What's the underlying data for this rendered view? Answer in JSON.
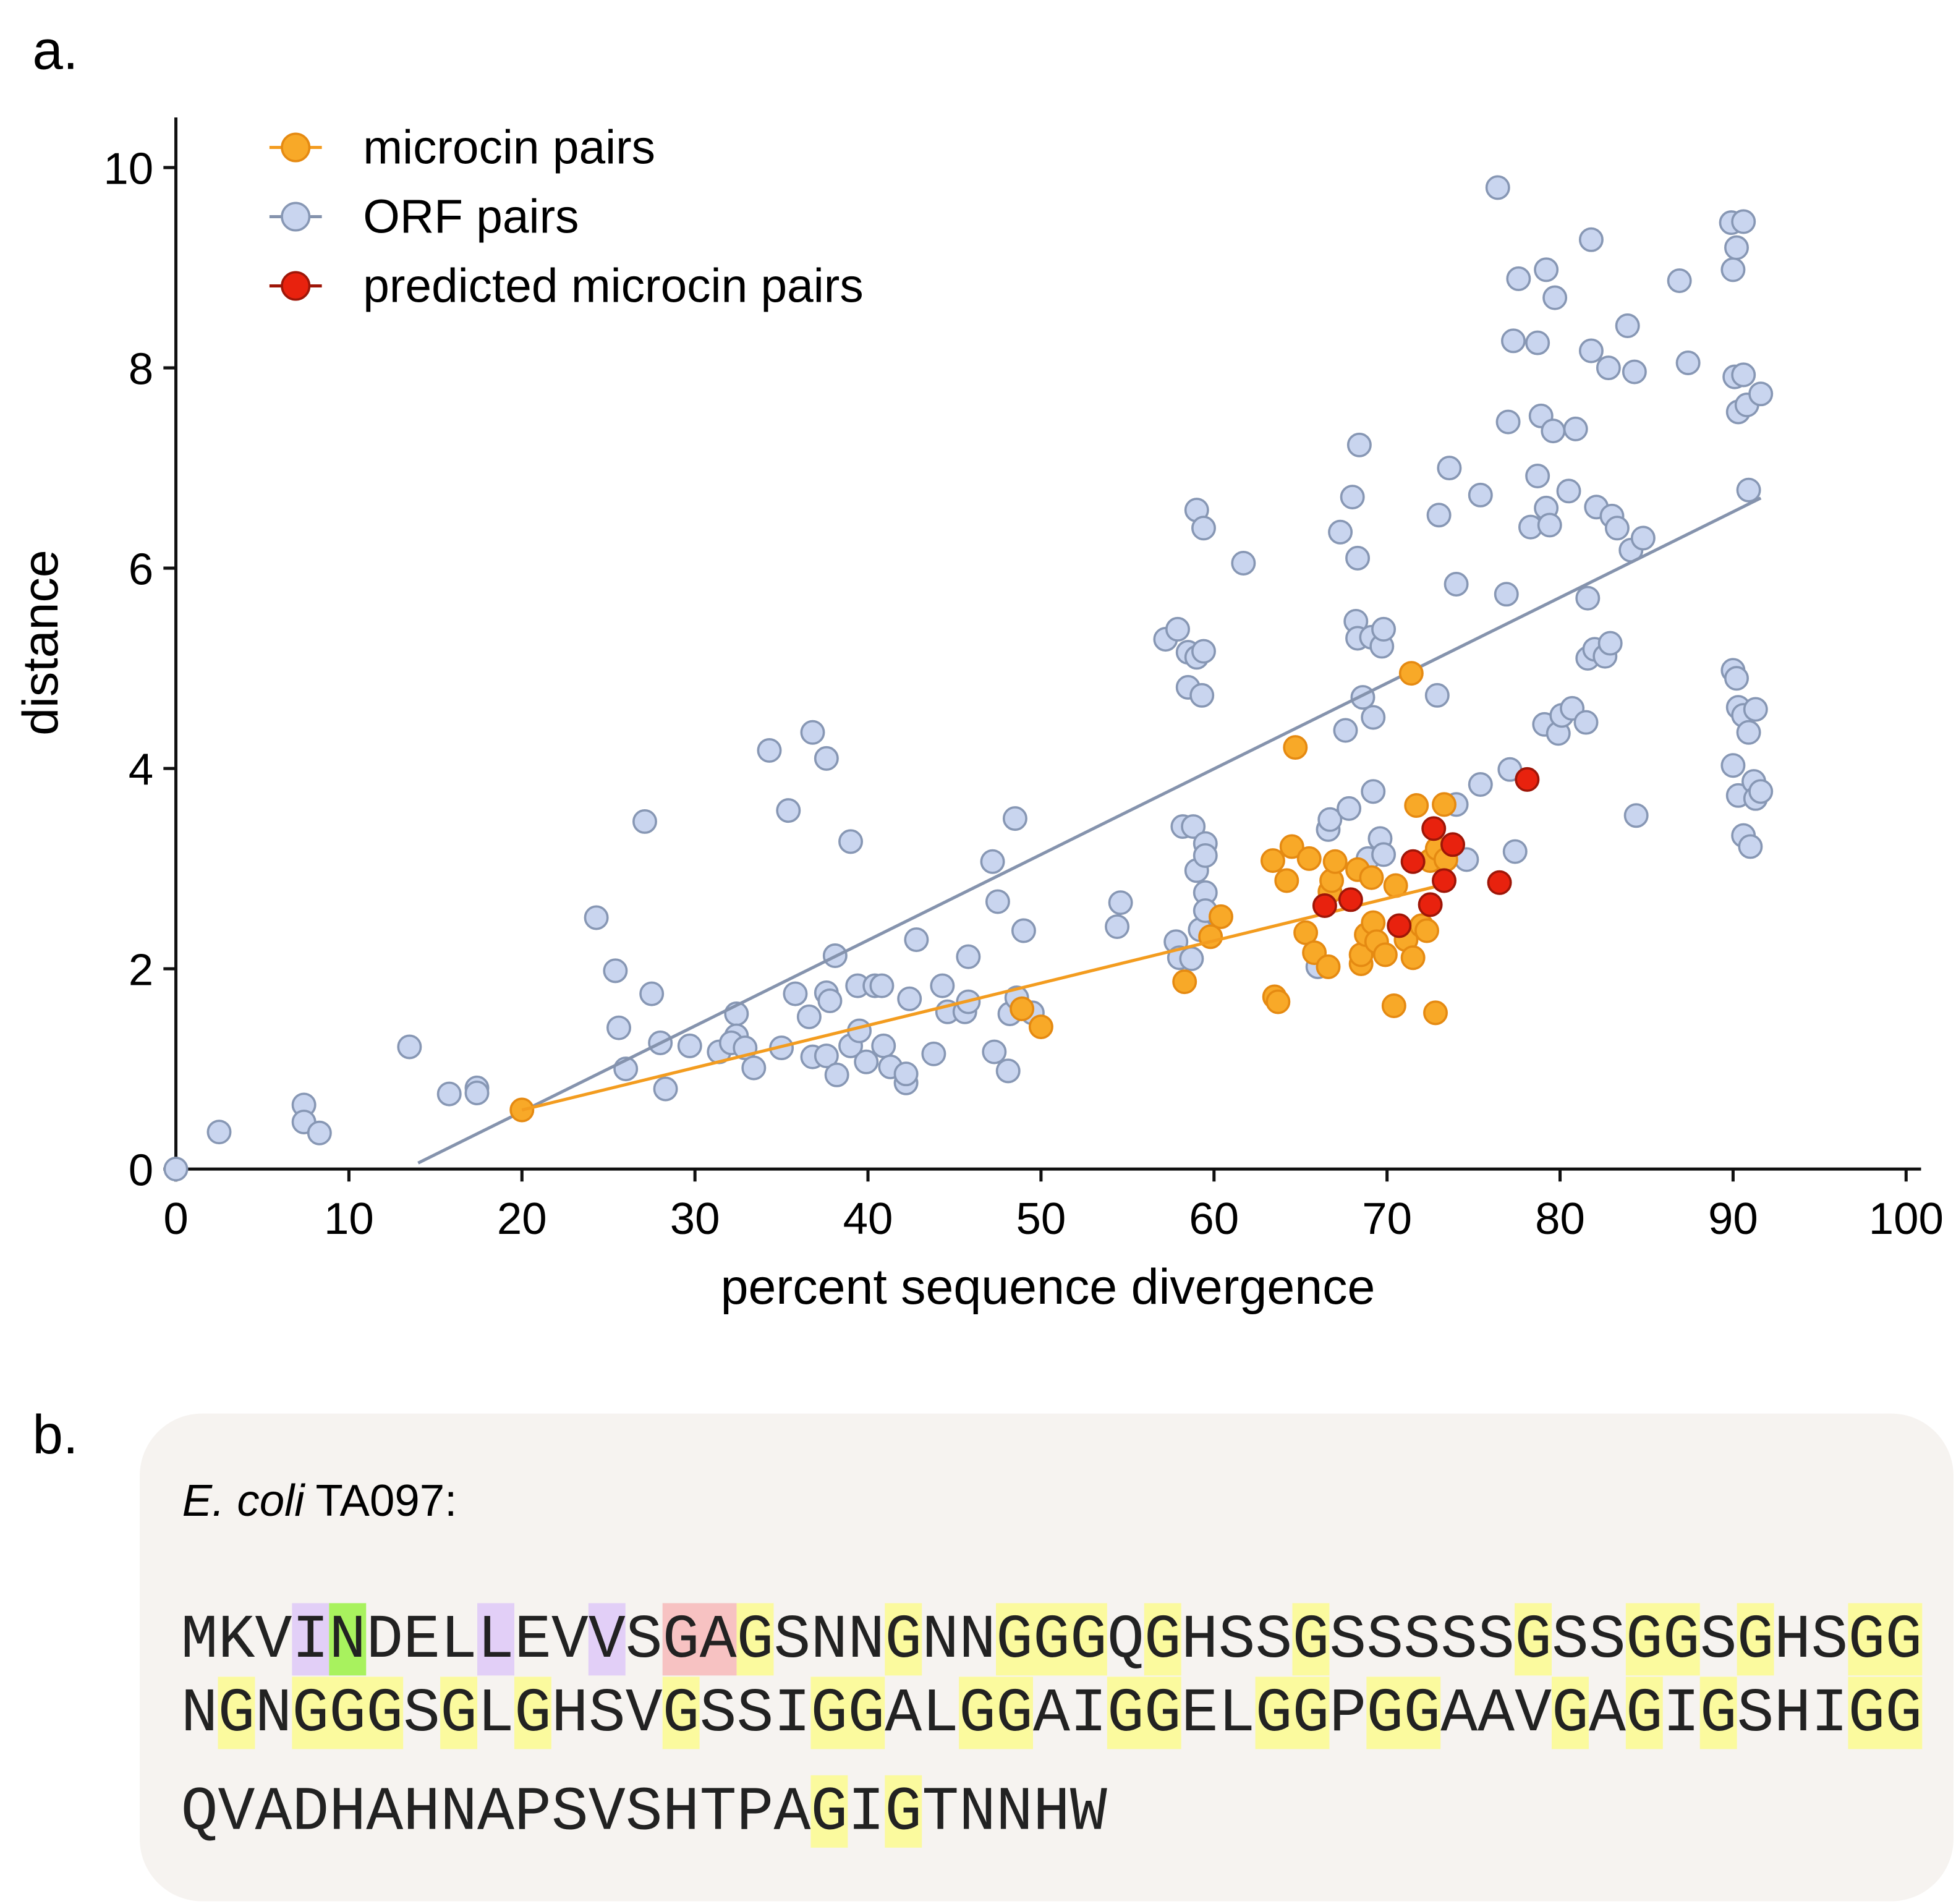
{
  "panel_labels": [
    "a.",
    "b."
  ],
  "chart_data": {
    "type": "scatter",
    "xlabel": "percent sequence divergence",
    "ylabel": "distance",
    "xlim": [
      0,
      100
    ],
    "ylim": [
      0,
      10.5
    ],
    "xticks": [
      0,
      10,
      20,
      30,
      40,
      50,
      60,
      70,
      80,
      90,
      100
    ],
    "yticks": [
      0,
      2,
      4,
      6,
      8,
      10
    ],
    "legend": "upper left",
    "series": [
      {
        "name": "microcin pairs",
        "color": "#f8a928",
        "edgecolor": "#e58a12",
        "x": [
          20.0,
          48.9,
          50.0,
          58.3,
          59.8,
          60.4,
          63.4,
          63.5,
          63.7,
          64.2,
          64.5,
          64.7,
          65.3,
          65.5,
          65.8,
          66.6,
          66.7,
          66.8,
          67.0,
          68.3,
          68.5,
          68.5,
          68.8,
          69.1,
          69.2,
          69.4,
          69.9,
          70.4,
          70.5,
          71.1,
          71.4,
          71.5,
          71.7,
          72.0,
          72.3,
          72.5,
          72.8,
          72.9,
          73.3,
          73.4
        ],
        "y": [
          0.59,
          1.6,
          1.42,
          1.87,
          2.32,
          2.52,
          3.08,
          1.72,
          1.67,
          2.88,
          3.22,
          4.21,
          2.36,
          3.1,
          2.16,
          2.02,
          2.77,
          2.88,
          3.07,
          2.99,
          2.05,
          2.14,
          2.34,
          2.91,
          2.46,
          2.27,
          2.14,
          1.63,
          2.83,
          2.29,
          4.95,
          2.11,
          3.63,
          2.43,
          2.38,
          3.08,
          1.56,
          3.2,
          3.64,
          3.09
        ],
        "trend": {
          "color": "#f39c1f",
          "x": [
            20.0,
            72.8
          ],
          "y": [
            0.59,
            2.82
          ]
        }
      },
      {
        "name": "ORF pairs",
        "color": "#c9d5ef",
        "edgecolor": "#8797b4",
        "x": [
          0,
          2.5,
          7.4,
          7.4,
          8.3,
          13.5,
          15.8,
          17.4,
          17.4,
          24.3,
          25.4,
          25.6,
          26.0,
          27.1,
          27.5,
          28.0,
          28.3,
          29.7,
          31.4,
          32.4,
          32.4,
          32.1,
          32.9,
          33.4,
          34.3,
          35.0,
          35.4,
          35.8,
          36.6,
          36.8,
          36.8,
          37.6,
          37.6,
          37.6,
          37.8,
          38.1,
          38.2,
          39.0,
          39.0,
          39.4,
          39.5,
          39.9,
          40.4,
          40.8,
          40.9,
          41.3,
          42.2,
          42.2,
          42.4,
          42.8,
          43.8,
          44.3,
          44.6,
          45.6,
          45.8,
          45.8,
          47.2,
          47.3,
          47.5,
          48.1,
          48.2,
          48.5,
          48.6,
          49.0,
          49.5,
          54.4,
          54.6,
          57.2,
          57.9,
          58.2,
          57.8,
          58.0,
          58.5,
          58.5,
          58.7,
          58.8,
          59.0,
          59.0,
          59.0,
          59.2,
          59.3,
          59.4,
          59.4,
          59.5,
          59.5,
          59.5,
          59.5,
          61.7,
          66.0,
          66.6,
          66.7,
          67.3,
          67.6,
          67.8,
          68.0,
          68.2,
          68.3,
          68.3,
          68.4,
          68.6,
          68.9,
          69.1,
          69.2,
          69.2,
          69.6,
          69.7,
          69.8,
          69.8,
          73.0,
          72.9,
          73.6,
          74.0,
          74.0,
          74.6,
          75.4,
          75.4,
          76.4,
          76.9,
          77.0,
          77.1,
          77.3,
          77.4,
          77.6,
          78.3,
          78.7,
          78.7,
          78.9,
          79.1,
          79.2,
          79.2,
          79.4,
          79.6,
          79.7,
          79.9,
          80.1,
          80.5,
          80.7,
          80.9,
          81.5,
          81.6,
          81.6,
          81.8,
          81.8,
          82.0,
          82.1,
          82.6,
          82.8,
          82.9,
          83.0,
          83.3,
          83.9,
          84.1,
          84.3,
          84.4,
          84.8,
          86.9,
          87.4,
          89.9,
          90.0,
          90.0,
          90.0,
          90.1,
          90.2,
          90.2,
          90.3,
          90.3,
          90.3,
          90.6,
          90.6,
          90.6,
          90.6,
          90.8,
          90.9,
          90.9,
          91.0,
          91.2,
          91.3,
          91.3,
          91.6,
          91.6
        ],
        "y": [
          0,
          0.37,
          0.64,
          0.47,
          0.36,
          1.22,
          0.75,
          0.81,
          0.76,
          2.51,
          1.98,
          1.41,
          1.0,
          3.47,
          1.75,
          1.26,
          0.8,
          1.23,
          1.17,
          1.55,
          1.33,
          1.26,
          1.21,
          1.01,
          4.18,
          1.21,
          3.58,
          1.75,
          1.52,
          4.36,
          1.12,
          1.76,
          1.13,
          4.1,
          1.68,
          2.13,
          0.94,
          3.27,
          1.23,
          1.83,
          1.38,
          1.07,
          1.83,
          1.83,
          1.23,
          1.02,
          0.86,
          0.95,
          1.7,
          2.29,
          1.15,
          1.83,
          1.57,
          1.57,
          1.67,
          2.12,
          3.07,
          1.17,
          2.67,
          0.98,
          1.55,
          3.5,
          1.71,
          2.38,
          1.56,
          2.42,
          2.66,
          5.29,
          5.39,
          3.42,
          2.27,
          2.11,
          5.16,
          4.81,
          2.1,
          3.42,
          6.58,
          5.11,
          2.98,
          2.39,
          4.73,
          5.17,
          6.4,
          3.25,
          3.13,
          2.76,
          2.58,
          6.05,
          2.02,
          3.39,
          3.49,
          6.36,
          4.38,
          3.6,
          6.71,
          5.47,
          5.3,
          6.1,
          7.23,
          4.71,
          3.1,
          5.31,
          3.77,
          4.51,
          3.3,
          5.22,
          5.39,
          3.14,
          6.53,
          4.73,
          7.0,
          5.84,
          3.64,
          3.09,
          3.84,
          6.73,
          9.8,
          5.74,
          7.46,
          3.99,
          8.27,
          3.17,
          8.89,
          6.41,
          8.25,
          6.92,
          7.52,
          4.44,
          8.98,
          6.6,
          6.43,
          7.37,
          8.7,
          4.35,
          4.53,
          6.77,
          4.6,
          7.39,
          4.46,
          5.7,
          5.1,
          9.28,
          8.17,
          5.19,
          6.61,
          5.12,
          8.0,
          5.25,
          6.52,
          6.4,
          8.42,
          6.18,
          7.96,
          3.53,
          6.3,
          8.87,
          8.05,
          9.45,
          4.98,
          8.98,
          4.03,
          7.91,
          9.2,
          4.9,
          7.56,
          3.73,
          4.61,
          9.46,
          7.93,
          3.33,
          4.53,
          7.63,
          6.78,
          4.36,
          3.22,
          3.87,
          4.59,
          3.7,
          7.74,
          3.77
        ],
        "trend": {
          "color": "#8593ad",
          "x": [
            14.0,
            91.6
          ],
          "y": [
            0.06,
            6.7
          ]
        }
      },
      {
        "name": "predicted microcin pairs",
        "color": "#e8220e",
        "edgecolor": "#9e1608",
        "x": [
          66.4,
          67.9,
          70.7,
          71.5,
          72.5,
          72.7,
          73.3,
          73.8,
          76.5,
          78.1
        ],
        "y": [
          2.63,
          2.69,
          2.43,
          3.07,
          2.64,
          3.4,
          2.88,
          3.24,
          2.86,
          3.89
        ]
      }
    ]
  },
  "sequence": {
    "strain_italic": "E. coli",
    "strain": "TA097:",
    "lines": [
      [
        {
          "text": "MKV"
        },
        {
          "text": "I",
          "highlight": "#e2cff7"
        },
        {
          "text": "N",
          "highlight": "#a8f25e"
        },
        {
          "text": "DEL"
        },
        {
          "text": "L",
          "highlight": "#e2cff7"
        },
        {
          "text": "EV"
        },
        {
          "text": "V",
          "highlight": "#e2cff7"
        },
        {
          "text": "S"
        },
        {
          "text": "GA",
          "highlight": "#f7c2c2"
        },
        {
          "text": "G",
          "highlight": "#fbfa9e"
        },
        {
          "text": "SNN"
        },
        {
          "text": "G",
          "highlight": "#fbfa9e"
        },
        {
          "text": "NN"
        },
        {
          "text": "GGG",
          "highlight": "#fbfa9e"
        },
        {
          "text": "Q"
        },
        {
          "text": "G",
          "highlight": "#fbfa9e"
        },
        {
          "text": "HSS"
        },
        {
          "text": "G",
          "highlight": "#fbfa9e"
        },
        {
          "text": "SSSSS"
        },
        {
          "text": "G",
          "highlight": "#fbfa9e"
        },
        {
          "text": "SS"
        },
        {
          "text": "GG",
          "highlight": "#fbfa9e"
        },
        {
          "text": "S"
        },
        {
          "text": "G",
          "highlight": "#fbfa9e"
        },
        {
          "text": "HS"
        },
        {
          "text": "GG",
          "highlight": "#fbfa9e"
        }
      ],
      [
        {
          "text": "N"
        },
        {
          "text": "G",
          "highlight": "#fbfa9e"
        },
        {
          "text": "N"
        },
        {
          "text": "GGG",
          "highlight": "#fbfa9e"
        },
        {
          "text": "S"
        },
        {
          "text": "G",
          "highlight": "#fbfa9e"
        },
        {
          "text": "L"
        },
        {
          "text": "G",
          "highlight": "#fbfa9e"
        },
        {
          "text": "HSV"
        },
        {
          "text": "G",
          "highlight": "#fbfa9e"
        },
        {
          "text": "SSI"
        },
        {
          "text": "GG",
          "highlight": "#fbfa9e"
        },
        {
          "text": "AL"
        },
        {
          "text": "GG",
          "highlight": "#fbfa9e"
        },
        {
          "text": "AI"
        },
        {
          "text": "GG",
          "highlight": "#fbfa9e"
        },
        {
          "text": "EL"
        },
        {
          "text": "GG",
          "highlight": "#fbfa9e"
        },
        {
          "text": "P"
        },
        {
          "text": "GG",
          "highlight": "#fbfa9e"
        },
        {
          "text": "AAV"
        },
        {
          "text": "G",
          "highlight": "#fbfa9e"
        },
        {
          "text": "A"
        },
        {
          "text": "G",
          "highlight": "#fbfa9e"
        },
        {
          "text": "I"
        },
        {
          "text": "G",
          "highlight": "#fbfa9e"
        },
        {
          "text": "SHI"
        },
        {
          "text": "GG",
          "highlight": "#fbfa9e"
        }
      ],
      [
        {
          "text": "QVADHAHNAPSVSHTPA"
        },
        {
          "text": "G",
          "highlight": "#fbfa9e"
        },
        {
          "text": "I"
        },
        {
          "text": "G",
          "highlight": "#fbfa9e"
        },
        {
          "text": "TNNHW"
        }
      ]
    ]
  }
}
